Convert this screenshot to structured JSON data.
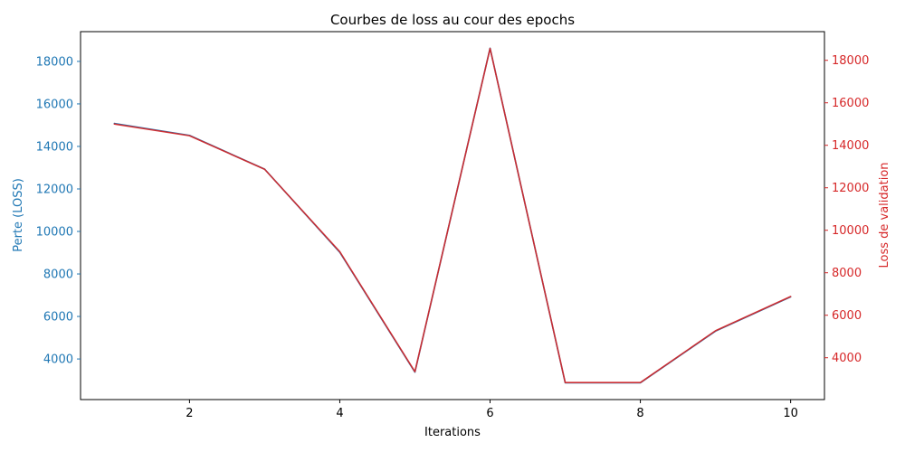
{
  "chart_data": {
    "type": "line",
    "title": "Courbes de loss au cour des epochs",
    "xlabel": "Iterations",
    "ylabel_left": "Perte (LOSS)",
    "ylabel_right": "Loss de validation",
    "x": [
      1,
      2,
      3,
      4,
      5,
      6,
      7,
      8,
      9,
      10
    ],
    "xlim": [
      0.55,
      10.45
    ],
    "x_ticks": [
      2,
      4,
      6,
      8,
      10
    ],
    "series": [
      {
        "axis": "left",
        "color": "#1f77b4",
        "values": [
          15080,
          14520,
          12930,
          9020,
          3380,
          18620,
          2880,
          2880,
          5310,
          6920
        ]
      },
      {
        "axis": "right",
        "color": "#d62728",
        "values": [
          15000,
          14450,
          12870,
          8990,
          3340,
          18560,
          2830,
          2830,
          5270,
          6880
        ]
      }
    ],
    "ylim_left": [
      2090,
      19400
    ],
    "ylim_right": [
      2030,
      19350
    ],
    "y_ticks_left": [
      4000,
      6000,
      8000,
      10000,
      12000,
      14000,
      16000,
      18000
    ],
    "y_ticks_right": [
      4000,
      6000,
      8000,
      10000,
      12000,
      14000,
      16000,
      18000
    ],
    "left_axis_color": "#1f77b4",
    "right_axis_color": "#d62728",
    "grid": false
  }
}
